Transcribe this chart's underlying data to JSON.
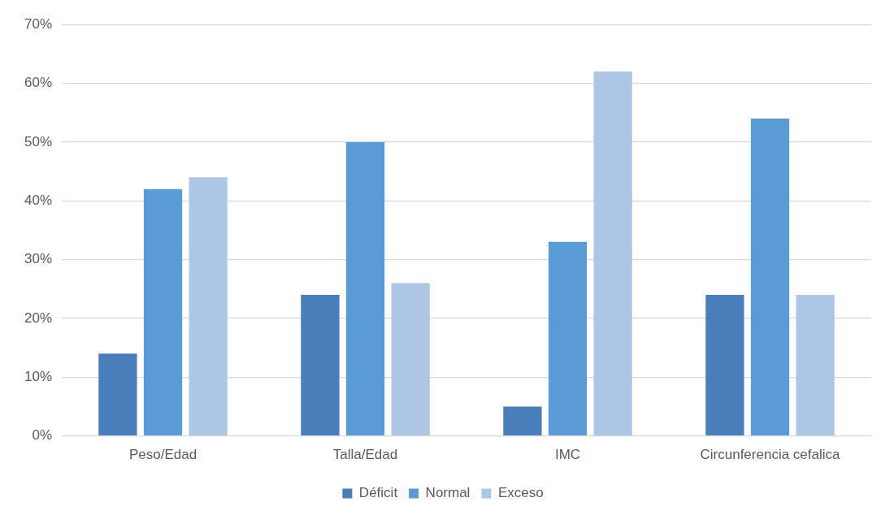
{
  "chart_data": {
    "type": "bar",
    "categories": [
      "Peso/Edad",
      "Talla/Edad",
      "IMC",
      "Circunferencia cefalica"
    ],
    "series": [
      {
        "name": "Déficit",
        "color": "#4a7ebb",
        "values": [
          14,
          24,
          5,
          24
        ]
      },
      {
        "name": "Normal",
        "color": "#5b9bd5",
        "values": [
          42,
          50,
          33,
          54
        ]
      },
      {
        "name": "Exceso",
        "color": "#adc6e6",
        "values": [
          44,
          26,
          62,
          24
        ]
      }
    ],
    "ylim": [
      0,
      70
    ],
    "yticks": [
      {
        "value": 0,
        "label": "0%"
      },
      {
        "value": 10,
        "label": "10%"
      },
      {
        "value": 20,
        "label": "20%"
      },
      {
        "value": 30,
        "label": "30%"
      },
      {
        "value": 40,
        "label": "40%"
      },
      {
        "value": 50,
        "label": "50%"
      },
      {
        "value": 60,
        "label": "60%"
      },
      {
        "value": 70,
        "label": "70%"
      }
    ],
    "grid": "y",
    "legend": "bottom"
  }
}
